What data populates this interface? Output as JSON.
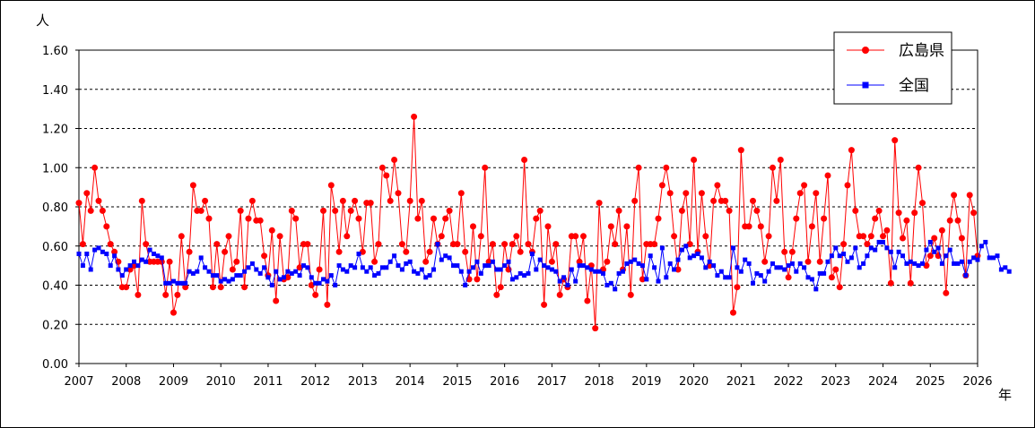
{
  "chart_data": {
    "type": "line",
    "ylabel": "人",
    "xlabel": "年",
    "ylim": [
      0,
      1.6
    ],
    "yticks": [
      "0.00",
      "0.20",
      "0.40",
      "0.60",
      "0.80",
      "1.00",
      "1.20",
      "1.40",
      "1.60"
    ],
    "xticks": [
      "2007",
      "2008",
      "2009",
      "2010",
      "2011",
      "2012",
      "2013",
      "2014",
      "2015",
      "2016",
      "2017",
      "2018",
      "2019",
      "2020",
      "2021",
      "2022",
      "2023",
      "2024",
      "2025",
      "2026"
    ],
    "xlim": [
      2007,
      2026
    ],
    "grid": true,
    "legend_position": "top-right",
    "series": [
      {
        "name": "広島県",
        "color": "#ff0000",
        "marker": "circle",
        "start_year": 2007,
        "values": [
          0.82,
          0.61,
          0.87,
          0.78,
          1.0,
          0.83,
          0.78,
          0.7,
          0.61,
          0.57,
          0.52,
          0.39,
          0.39,
          0.48,
          0.5,
          0.35,
          0.83,
          0.61,
          0.52,
          0.52,
          0.52,
          0.52,
          0.35,
          0.52,
          0.26,
          0.35,
          0.65,
          0.39,
          0.57,
          0.91,
          0.78,
          0.78,
          0.83,
          0.74,
          0.39,
          0.61,
          0.39,
          0.57,
          0.65,
          0.48,
          0.52,
          0.78,
          0.39,
          0.74,
          0.83,
          0.73,
          0.73,
          0.55,
          0.45,
          0.68,
          0.32,
          0.65,
          0.43,
          0.44,
          0.78,
          0.74,
          0.49,
          0.61,
          0.61,
          0.4,
          0.35,
          0.48,
          0.78,
          0.3,
          0.91,
          0.78,
          0.57,
          0.83,
          0.65,
          0.78,
          0.83,
          0.74,
          0.57,
          0.82,
          0.82,
          0.52,
          0.61,
          1.0,
          0.96,
          0.83,
          1.04,
          0.87,
          0.61,
          0.57,
          0.83,
          1.26,
          0.74,
          0.83,
          0.52,
          0.57,
          0.74,
          0.61,
          0.65,
          0.74,
          0.78,
          0.61,
          0.61,
          0.87,
          0.57,
          0.43,
          0.7,
          0.43,
          0.65,
          1.0,
          0.52,
          0.61,
          0.35,
          0.39,
          0.61,
          0.48,
          0.61,
          0.65,
          0.57,
          1.04,
          0.61,
          0.57,
          0.74,
          0.78,
          0.3,
          0.7,
          0.52,
          0.61,
          0.35,
          0.43,
          0.39,
          0.65,
          0.65,
          0.52,
          0.65,
          0.32,
          0.5,
          0.18,
          0.82,
          0.48,
          0.52,
          0.7,
          0.61,
          0.78,
          0.48,
          0.7,
          0.35,
          0.83,
          1.0,
          0.43,
          0.61,
          0.61,
          0.61,
          0.74,
          0.91,
          1.0,
          0.87,
          0.65,
          0.48,
          0.78,
          0.87,
          0.61,
          1.04,
          0.57,
          0.87,
          0.65,
          0.5,
          0.83,
          0.91,
          0.83,
          0.83,
          0.78,
          0.26,
          0.39,
          1.09,
          0.7,
          0.7,
          0.83,
          0.78,
          0.7,
          0.52,
          0.65,
          1.0,
          0.83,
          1.04,
          0.57,
          0.44,
          0.57,
          0.74,
          0.87,
          0.91,
          0.52,
          0.7,
          0.87,
          0.52,
          0.74,
          0.96,
          0.44,
          0.48,
          0.39,
          0.61,
          0.91,
          1.09,
          0.78,
          0.65,
          0.65,
          0.61,
          0.65,
          0.74,
          0.78,
          0.65,
          0.68,
          0.41,
          1.14,
          0.77,
          0.64,
          0.73,
          0.41,
          0.77,
          1.0,
          0.82,
          0.5,
          0.55,
          0.64,
          0.55,
          0.68,
          0.36,
          0.73,
          0.86,
          0.73,
          0.64,
          0.45,
          0.86,
          0.77,
          0.55
        ]
      },
      {
        "name": "全国",
        "color": "#0000ff",
        "marker": "square",
        "start_year": 2007,
        "values": [
          0.56,
          0.5,
          0.56,
          0.48,
          0.58,
          0.59,
          0.57,
          0.56,
          0.5,
          0.55,
          0.48,
          0.45,
          0.48,
          0.5,
          0.52,
          0.5,
          0.53,
          0.52,
          0.58,
          0.56,
          0.55,
          0.54,
          0.41,
          0.41,
          0.42,
          0.41,
          0.41,
          0.41,
          0.47,
          0.46,
          0.47,
          0.54,
          0.49,
          0.47,
          0.45,
          0.45,
          0.42,
          0.43,
          0.42,
          0.43,
          0.45,
          0.45,
          0.47,
          0.49,
          0.51,
          0.48,
          0.46,
          0.49,
          0.44,
          0.4,
          0.47,
          0.43,
          0.44,
          0.47,
          0.46,
          0.47,
          0.45,
          0.5,
          0.49,
          0.44,
          0.41,
          0.41,
          0.43,
          0.42,
          0.45,
          0.4,
          0.5,
          0.48,
          0.47,
          0.5,
          0.49,
          0.56,
          0.49,
          0.47,
          0.49,
          0.45,
          0.46,
          0.49,
          0.49,
          0.52,
          0.55,
          0.5,
          0.48,
          0.51,
          0.52,
          0.47,
          0.46,
          0.48,
          0.44,
          0.45,
          0.48,
          0.61,
          0.53,
          0.55,
          0.54,
          0.5,
          0.5,
          0.47,
          0.4,
          0.47,
          0.49,
          0.52,
          0.46,
          0.5,
          0.5,
          0.52,
          0.48,
          0.48,
          0.5,
          0.52,
          0.43,
          0.44,
          0.46,
          0.45,
          0.46,
          0.56,
          0.48,
          0.53,
          0.5,
          0.49,
          0.48,
          0.47,
          0.42,
          0.44,
          0.4,
          0.48,
          0.42,
          0.5,
          0.5,
          0.49,
          0.48,
          0.47,
          0.47,
          0.46,
          0.4,
          0.41,
          0.38,
          0.46,
          0.47,
          0.51,
          0.52,
          0.53,
          0.51,
          0.5,
          0.43,
          0.55,
          0.49,
          0.42,
          0.59,
          0.44,
          0.51,
          0.48,
          0.53,
          0.58,
          0.6,
          0.54,
          0.55,
          0.56,
          0.54,
          0.49,
          0.52,
          0.5,
          0.45,
          0.47,
          0.44,
          0.44,
          0.59,
          0.49,
          0.47,
          0.53,
          0.51,
          0.41,
          0.46,
          0.45,
          0.42,
          0.47,
          0.51,
          0.49,
          0.49,
          0.48,
          0.5,
          0.51,
          0.47,
          0.51,
          0.49,
          0.44,
          0.43,
          0.38,
          0.46,
          0.46,
          0.52,
          0.55,
          0.59,
          0.55,
          0.56,
          0.52,
          0.54,
          0.59,
          0.49,
          0.51,
          0.55,
          0.59,
          0.58,
          0.62,
          0.62,
          0.59,
          0.57,
          0.49,
          0.57,
          0.55,
          0.51,
          0.52,
          0.51,
          0.5,
          0.51,
          0.58,
          0.62,
          0.57,
          0.59,
          0.51,
          0.55,
          0.58,
          0.51,
          0.51,
          0.52,
          0.45,
          0.52,
          0.54,
          0.53,
          0.6,
          0.62,
          0.54,
          0.54,
          0.55,
          0.48,
          0.49,
          0.47
        ]
      }
    ]
  }
}
